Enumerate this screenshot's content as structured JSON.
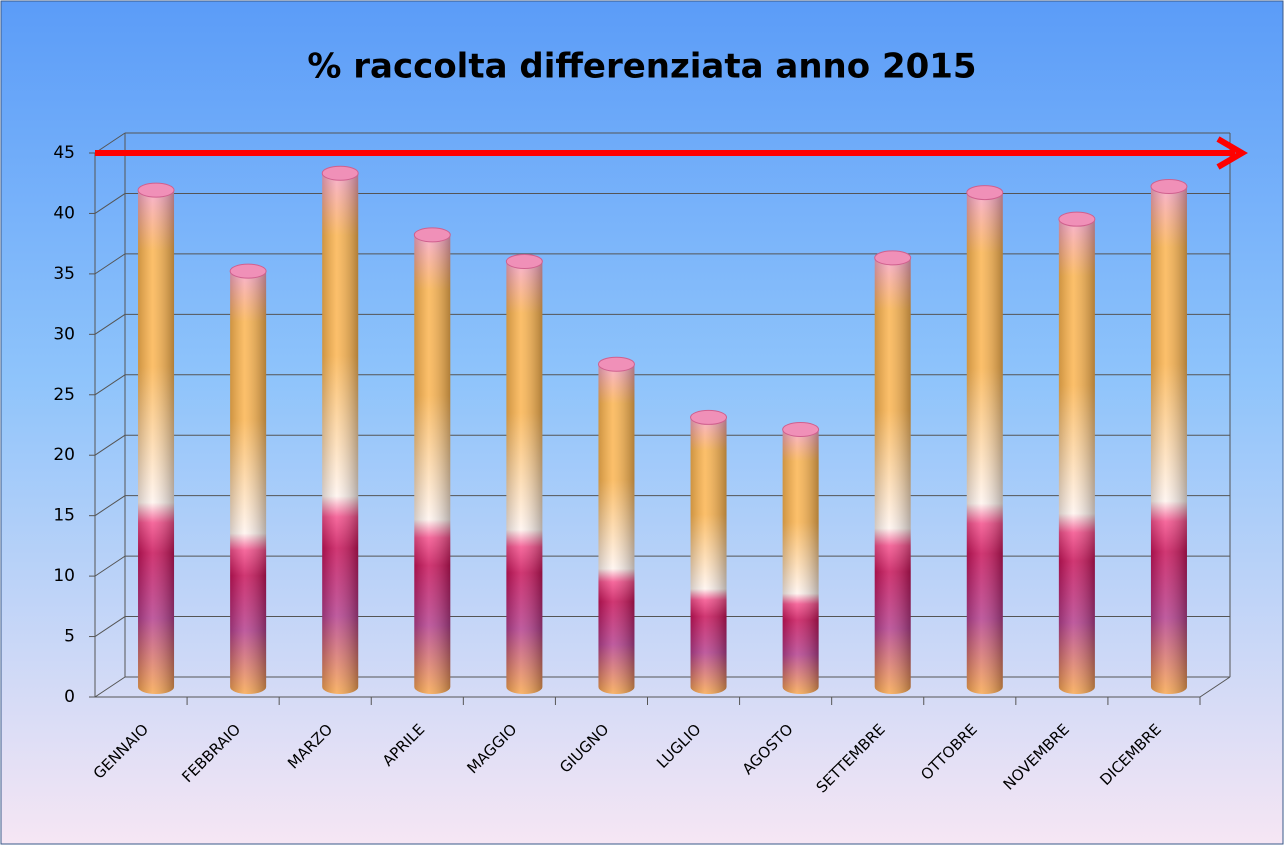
{
  "chart_data": {
    "type": "bar",
    "title": "% raccolta differenziata anno 2015",
    "categories": [
      "GENNAIO",
      "FEBBRAIO",
      "MARZO",
      "APRILE",
      "MAGGIO",
      "GIUGNO",
      "LUGLIO",
      "AGOSTO",
      "SETTEMBRE",
      "OTTOBRE",
      "NOVEMBRE",
      "DICEMBRE"
    ],
    "values": [
      41.1,
      34.4,
      42.5,
      37.4,
      35.2,
      26.7,
      22.3,
      21.3,
      35.5,
      40.9,
      38.7,
      41.4
    ],
    "ylim": [
      0,
      45
    ],
    "yticks": [
      0,
      5,
      10,
      15,
      20,
      25,
      30,
      35,
      40,
      45
    ],
    "grid": true
  }
}
